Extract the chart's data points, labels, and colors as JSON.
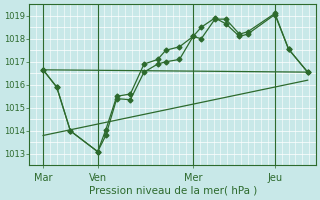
{
  "xlabel": "Pression niveau de la mer( hPa )",
  "bg_color": "#c8e8e8",
  "line_color": "#2d6a2d",
  "grid_color": "#ffffff",
  "tick_color": "#2d6a2d",
  "spine_color": "#2d6a2d",
  "ylim": [
    1012.5,
    1019.5
  ],
  "xlim": [
    0,
    10.5
  ],
  "yticks": [
    1013,
    1014,
    1015,
    1016,
    1017,
    1018,
    1019
  ],
  "xtick_labels": [
    "Mar",
    "Ven",
    "Mer",
    "Jeu"
  ],
  "xtick_pos": [
    0.5,
    2.5,
    6.0,
    9.0
  ],
  "vlines": [
    0.5,
    2.5,
    6.0,
    9.0
  ],
  "series1": {
    "x": [
      0.5,
      1.0,
      1.5,
      2.5,
      2.8,
      3.2,
      3.7,
      4.2,
      4.7,
      5.0,
      5.5,
      6.0,
      6.3,
      6.8,
      7.2,
      7.7,
      8.0,
      9.0,
      9.5,
      10.2
    ],
    "y": [
      1016.65,
      1015.9,
      1014.0,
      1013.1,
      1013.8,
      1015.4,
      1015.35,
      1016.55,
      1016.9,
      1017.0,
      1017.1,
      1018.1,
      1018.0,
      1018.85,
      1018.85,
      1018.2,
      1018.3,
      1019.1,
      1017.55,
      1016.55
    ]
  },
  "series2": {
    "x": [
      0.5,
      1.0,
      1.5,
      2.5,
      2.8,
      3.2,
      3.7,
      4.2,
      4.7,
      5.0,
      5.5,
      6.0,
      6.3,
      6.8,
      7.2,
      7.7,
      8.0,
      9.0,
      9.5,
      10.2
    ],
    "y": [
      1016.65,
      1015.9,
      1014.0,
      1013.1,
      1014.05,
      1015.5,
      1015.6,
      1016.9,
      1017.1,
      1017.5,
      1017.65,
      1018.1,
      1018.5,
      1018.9,
      1018.65,
      1018.1,
      1018.2,
      1019.05,
      1017.55,
      1016.55
    ]
  },
  "series3": {
    "x": [
      0.5,
      10.2
    ],
    "y": [
      1016.65,
      1016.55
    ]
  },
  "series4": {
    "x": [
      0.5,
      10.2
    ],
    "y": [
      1016.0,
      1016.2
    ]
  },
  "trend_line": {
    "x": [
      0.5,
      10.2
    ],
    "y": [
      1013.8,
      1016.2
    ]
  },
  "marker": "D",
  "marker_size": 2.5,
  "line_width": 0.9
}
